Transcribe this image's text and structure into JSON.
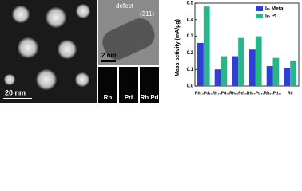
{
  "images": {
    "overview_scale": "20 nm",
    "defect_label": "defect",
    "facet_label": "(311)",
    "hrtem_scale": "2 nm",
    "maps": [
      "Rh",
      "Pd",
      "Rh Pd"
    ]
  },
  "chart_data": {
    "type": "bar",
    "y_label": "Mass activity (mA/μg)",
    "categories": [
      "Rh₁₀Pd₉₀",
      "Rh₃₀Pd₇₀",
      "Rh₅₀Pd₅₀",
      "Rh₇₀Pd₃₀",
      "Rh₉₀Pd₁₀",
      "Rh"
    ],
    "series": [
      {
        "name": "Iₘ Metal",
        "color": "#2f3fd6",
        "values": [
          0.26,
          0.1,
          0.18,
          0.22,
          0.12,
          0.11
        ]
      },
      {
        "name": "Iₘ Pt",
        "color": "#29b58a",
        "values": [
          0.48,
          0.18,
          0.29,
          0.3,
          0.17,
          0.15
        ]
      }
    ],
    "ylim": [
      0,
      0.5
    ],
    "yticks": [
      {
        "value": 0,
        "label": "0.0"
      },
      0.1,
      0.2,
      0.3,
      0.4,
      0.5
    ],
    "legend": "upper right"
  }
}
